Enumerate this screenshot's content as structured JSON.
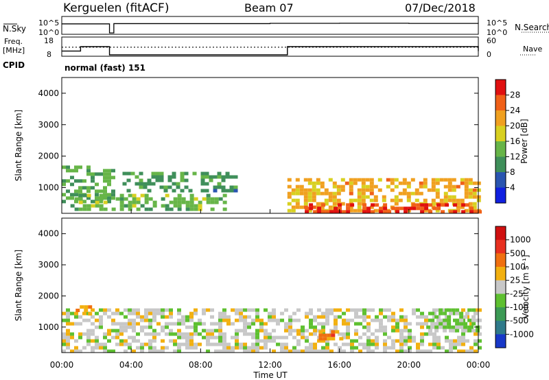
{
  "header": {
    "station": "Kerguelen (fitACF)",
    "beam": "Beam 07",
    "date": "07/Dec/2018"
  },
  "top_panels": {
    "nsky_label": "N.Sky",
    "nsearch_label": "N.Search",
    "count_ticks_left": [
      "10^5",
      "10^0"
    ],
    "count_ticks_right": [
      "10^5",
      "10^0"
    ],
    "freq_label": [
      "Freq.",
      "[MHz]"
    ],
    "freq_ticks": [
      "18",
      "8"
    ],
    "nave_label": "Nave",
    "nave_ticks": [
      "60",
      "0"
    ],
    "cpid_label": "CPID",
    "cpid_value": "normal (fast) 151"
  },
  "axes": {
    "ylabel": "Slant Range [km]",
    "xlabel": "Time UT",
    "y_ticks": [
      "4000",
      "3000",
      "2000",
      "1000"
    ],
    "x_ticks": [
      "00:00",
      "04:00",
      "08:00",
      "12:00",
      "16:00",
      "20:00",
      "00:00"
    ]
  },
  "colorbars": {
    "power": {
      "label": "Power [dB]",
      "ticks": [
        "28",
        "24",
        "20",
        "16",
        "12",
        "8",
        "4"
      ],
      "colors": [
        "#1020e0",
        "#2a55b0",
        "#3f8f5a",
        "#67b548",
        "#d8d020",
        "#f0a020",
        "#f06018",
        "#e01010"
      ]
    },
    "velocity": {
      "label": "Velocity [m s⁻¹]",
      "ticks": [
        "1000",
        "500",
        "100",
        "25",
        "-25",
        "-100",
        "-500",
        "-1000"
      ],
      "colors": [
        "#1838c8",
        "#2f7a8a",
        "#3c9a55",
        "#5ec030",
        "#c8c8c8",
        "#f2b010",
        "#f07010",
        "#e83020",
        "#d01010"
      ]
    }
  },
  "chart_data": [
    {
      "type": "line",
      "title": "N.Sky / N.Search",
      "x": [
        "00:00",
        "02:30",
        "02:45",
        "03:00",
        "12:00",
        "16:00",
        "20:00",
        "24:00"
      ],
      "series": [
        {
          "name": "N.Sky",
          "values": [
            1000,
            1000,
            1,
            1200,
            1500,
            1600,
            1400,
            1300
          ]
        }
      ],
      "ylim": [
        1,
        100000
      ]
    },
    {
      "type": "line",
      "title": "Freq.",
      "x": [
        "00:00",
        "01:00",
        "01:05",
        "02:30",
        "02:45",
        "13:00",
        "24:00"
      ],
      "series": [
        {
          "name": "Freq.",
          "values": [
            10.3,
            10.3,
            13,
            13,
            8,
            13,
            10.3
          ]
        },
        {
          "name": "Nave",
          "values": [
            28,
            28,
            28,
            28,
            28,
            28,
            28
          ]
        }
      ],
      "ylim": [
        8,
        18
      ]
    },
    {
      "type": "heatmap",
      "title": "Power [dB]",
      "x_range": [
        0,
        24
      ],
      "y_range": [
        180,
        4500
      ],
      "clim": [
        0,
        30
      ],
      "features": [
        {
          "label": "near range band 00-03 UT",
          "t": [
            0.0,
            3.0
          ],
          "r": [
            600,
            1700
          ],
          "value": 12
        },
        {
          "label": "band 03-10 UT",
          "t": [
            3.5,
            10.0
          ],
          "r": [
            900,
            1500
          ],
          "value": 10
        },
        {
          "label": "patches 00-10 UT",
          "t": [
            0.5,
            9.5
          ],
          "r": [
            300,
            800
          ],
          "value": 13
        },
        {
          "label": "post 13 UT",
          "t": [
            13.0,
            24.0
          ],
          "r": [
            300,
            1300
          ],
          "value": 20
        },
        {
          "label": "strong 13-24 UT",
          "t": [
            14.0,
            24.0
          ],
          "r": [
            200,
            500
          ],
          "value": 26
        }
      ]
    },
    {
      "type": "heatmap",
      "title": "Velocity [m s^-1]",
      "x_range": [
        0,
        24
      ],
      "y_range": [
        180,
        4500
      ],
      "clim": [
        -1000,
        1000
      ],
      "features": [
        {
          "label": "ground scatter",
          "t": [
            0.0,
            24.0
          ],
          "r": [
            200,
            1600
          ],
          "value": 0
        },
        {
          "label": "negative patch",
          "t": [
            0.8,
            1.6
          ],
          "r": [
            1400,
            1700
          ],
          "value": -300
        },
        {
          "label": "negative patch 15-16 UT",
          "t": [
            14.8,
            16.2
          ],
          "r": [
            600,
            900
          ],
          "value": -400
        },
        {
          "label": "positive band 21-24 UT",
          "t": [
            21.0,
            24.0
          ],
          "r": [
            900,
            1600
          ],
          "value": 150
        }
      ]
    }
  ]
}
